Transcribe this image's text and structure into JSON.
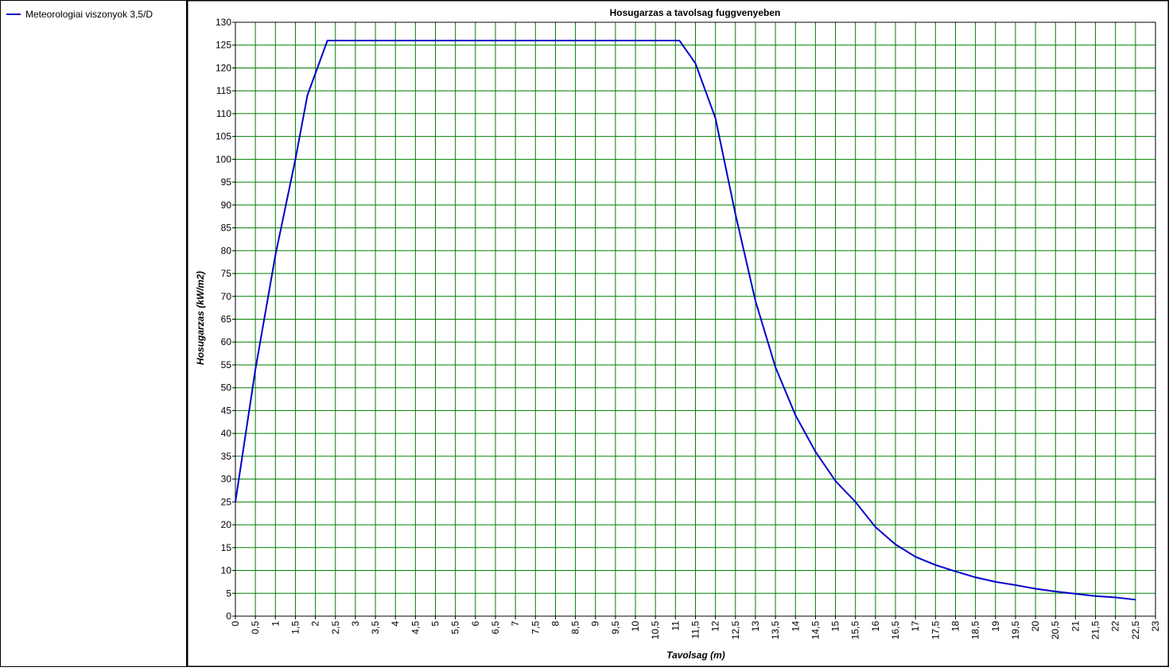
{
  "chart_data": {
    "type": "line",
    "title": "Hosugarzas a tavolsag fuggvenyeben",
    "x_label": "Tavolsag (m)",
    "y_label": "Hosugarzas (kW/m2)",
    "legend": "top-left",
    "grid": true,
    "grid_color": "#008000",
    "x": [
      0,
      0.5,
      1,
      1.5,
      1.8,
      2.3,
      11.1,
      11.5,
      12,
      12.5,
      13,
      13.5,
      14,
      14.5,
      15,
      15.5,
      16,
      16.5,
      17,
      17.5,
      18,
      18.5,
      19,
      19.5,
      20,
      20.5,
      21,
      21.5,
      22,
      22.5
    ],
    "series": [
      {
        "name": "Meteorologiai viszonyok 3,5/D",
        "color": "#0000cc",
        "values": [
          25,
          54,
          79,
          100,
          114,
          126,
          126,
          121,
          109,
          88,
          69,
          54.5,
          44,
          36,
          29.6,
          25,
          19.5,
          15.7,
          13,
          11.2,
          9.8,
          8.5,
          7.5,
          6.8,
          6,
          5.4,
          4.9,
          4.4,
          4.1,
          3.6
        ]
      }
    ],
    "xlim": [
      0,
      23
    ],
    "ylim": [
      0,
      130
    ],
    "yticks": [
      0,
      5,
      10,
      15,
      20,
      25,
      30,
      35,
      40,
      45,
      50,
      55,
      60,
      65,
      70,
      75,
      80,
      85,
      90,
      95,
      100,
      105,
      110,
      115,
      120,
      125,
      130
    ],
    "xticks": [
      0,
      {
        "value": 0.5,
        "label": "0,5"
      },
      1,
      {
        "value": 1.5,
        "label": "1,5"
      },
      2,
      {
        "value": 2.5,
        "label": "2,5"
      },
      3,
      {
        "value": 3.5,
        "label": "3,5"
      },
      4,
      {
        "value": 4.5,
        "label": "4,5"
      },
      5,
      {
        "value": 5.5,
        "label": "5,5"
      },
      6,
      {
        "value": 6.5,
        "label": "6,5"
      },
      7,
      {
        "value": 7.5,
        "label": "7,5"
      },
      8,
      {
        "value": 8.5,
        "label": "8,5"
      },
      9,
      {
        "value": 9.5,
        "label": "9,5"
      },
      10,
      {
        "value": 10.5,
        "label": "10,5"
      },
      11,
      {
        "value": 11.5,
        "label": "11,5"
      },
      12,
      {
        "value": 12.5,
        "label": "12,5"
      },
      13,
      {
        "value": 13.5,
        "label": "13,5"
      },
      14,
      {
        "value": 14.5,
        "label": "14,5"
      },
      15,
      {
        "value": 15.5,
        "label": "15,5"
      },
      16,
      {
        "value": 16.5,
        "label": "16,5"
      },
      17,
      {
        "value": 17.5,
        "label": "17,5"
      },
      18,
      {
        "value": 18.5,
        "label": "18,5"
      },
      19,
      {
        "value": 19.5,
        "label": "19,5"
      },
      20,
      {
        "value": 20.5,
        "label": "20,5"
      },
      21,
      {
        "value": 21.5,
        "label": "21,5"
      },
      22,
      {
        "value": 22.5,
        "label": "22,5"
      },
      23
    ]
  }
}
